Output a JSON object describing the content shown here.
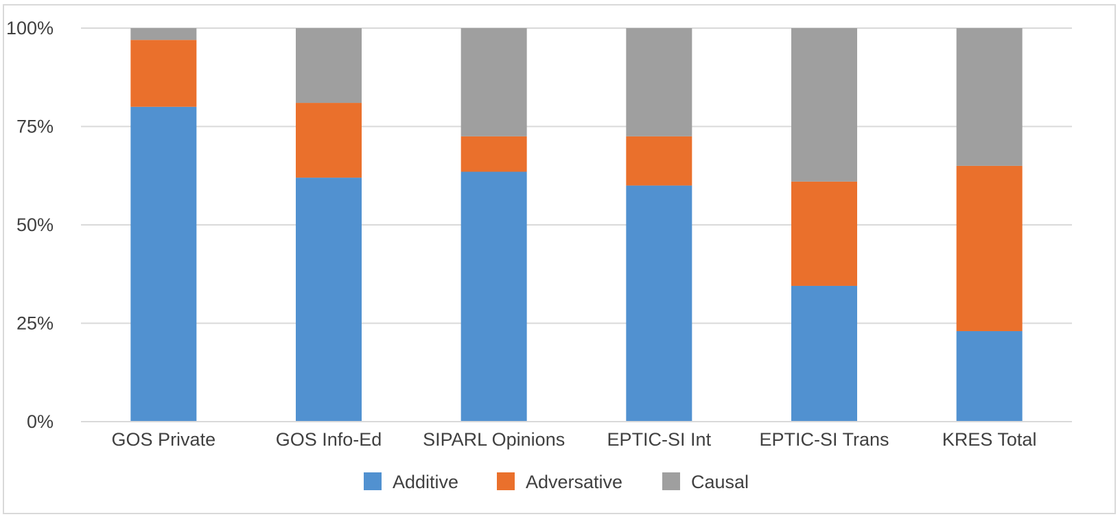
{
  "chart_data": {
    "type": "bar",
    "stacked": "percent",
    "categories": [
      "GOS Private",
      "GOS Info-Ed",
      "SIPARL Opinions",
      "EPTIC-SI Int",
      "EPTIC-SI Trans",
      "KRES Total"
    ],
    "series": [
      {
        "name": "Additive",
        "color": "#5191d0",
        "values": [
          80,
          62,
          63.5,
          60,
          34.5,
          23
        ]
      },
      {
        "name": "Adversative",
        "color": "#ea702c",
        "values": [
          17,
          19,
          9,
          12.5,
          26.5,
          42
        ]
      },
      {
        "name": "Causal",
        "color": "#9f9f9f",
        "values": [
          3,
          19,
          27.5,
          27.5,
          39,
          35
        ]
      }
    ],
    "yticks": [
      "0%",
      "25%",
      "50%",
      "75%",
      "100%"
    ],
    "ylim": [
      0,
      100
    ],
    "grid": true,
    "legend_position": "bottom",
    "gridline_color": "#d9d9d9",
    "axis_color": "#d9d9d9"
  }
}
